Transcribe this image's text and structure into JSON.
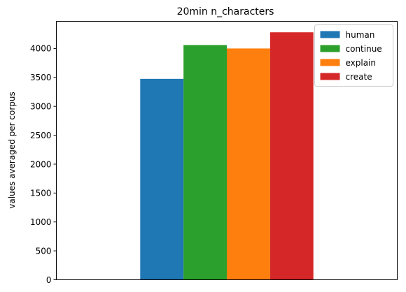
{
  "chart_data": {
    "type": "bar",
    "title": "20min n_characters",
    "xlabel": "",
    "ylabel": "values averaged per corpus",
    "categories": [
      ""
    ],
    "series": [
      {
        "name": "human",
        "values": [
          3475
        ],
        "color": "#1f77b4"
      },
      {
        "name": "continue",
        "values": [
          4060
        ],
        "color": "#2ca02c"
      },
      {
        "name": "explain",
        "values": [
          4000
        ],
        "color": "#ff7f0e"
      },
      {
        "name": "create",
        "values": [
          4280
        ],
        "color": "#d62728"
      }
    ],
    "ylim": [
      0,
      4470
    ],
    "yticks": [
      0,
      500,
      1000,
      1500,
      2000,
      2500,
      3000,
      3500,
      4000
    ],
    "legend": "top-right",
    "grid": false
  }
}
